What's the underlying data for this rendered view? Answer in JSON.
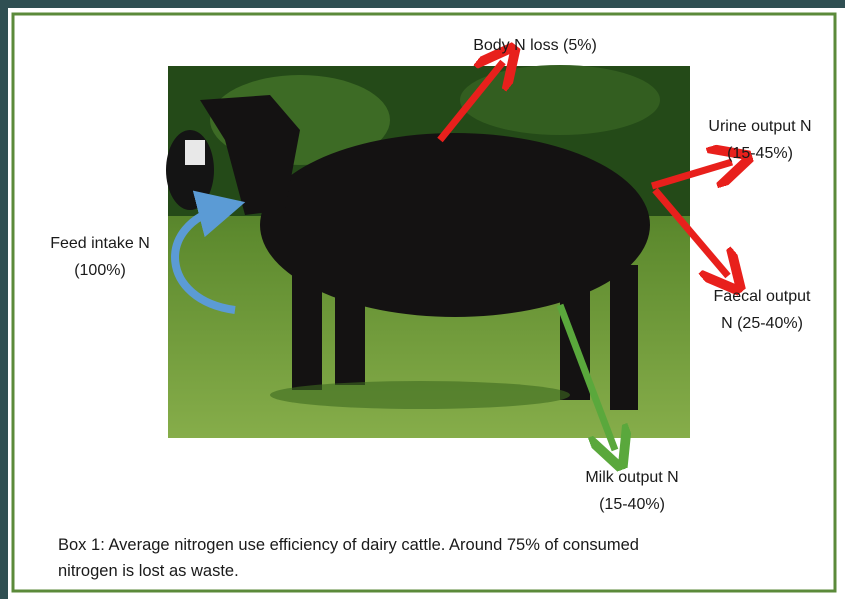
{
  "labels": [
    {
      "lines": [
        "Body N loss (5%)"
      ]
    },
    {
      "lines": [
        "Urine output N",
        "(15-45%)"
      ]
    },
    {
      "lines": [
        "Faecal output",
        "N (25-40%)"
      ]
    },
    {
      "lines": [
        "Feed intake N",
        "(100%)"
      ]
    },
    {
      "lines": [
        "Milk output N",
        "(15-40%)"
      ]
    }
  ],
  "caption": {
    "lines": [
      "Box 1: Average nitrogen use efficiency of dairy cattle. Around 75% of consumed",
      "nitrogen is lost as waste."
    ]
  }
}
